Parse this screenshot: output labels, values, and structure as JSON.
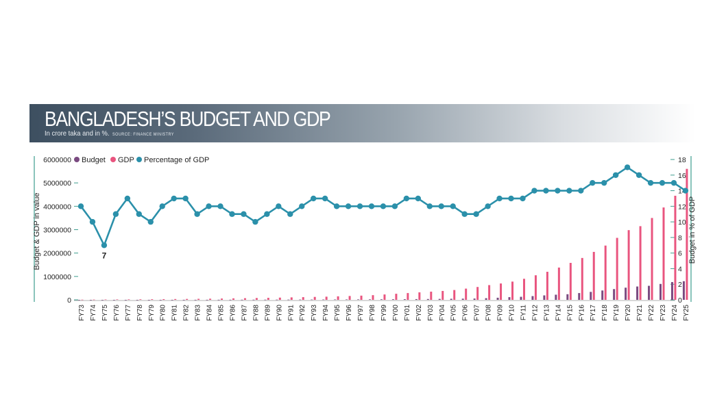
{
  "header": {
    "title": "BANGLADESH’S BUDGET AND GDP",
    "subtitle": "In crore taka and in %.",
    "source": "SOURCE: FINANCE MINISTRY"
  },
  "colors": {
    "budget": "#7a4a80",
    "gdp": "#e9557f",
    "percentage": "#2b90aa",
    "axis": "#3d9d8e",
    "text": "#222222"
  },
  "chart_data": {
    "type": "bar",
    "categories": [
      "FY73",
      "FY74",
      "FY75",
      "FY76",
      "FY77",
      "FY78",
      "FY79",
      "FY80",
      "FY81",
      "FY82",
      "FY83",
      "FY84",
      "FY85",
      "FY86",
      "FY87",
      "FY88",
      "FY89",
      "FY90",
      "FY91",
      "FY92",
      "FY93",
      "FY94",
      "FY95",
      "FY96",
      "FY97",
      "FY98",
      "FY99",
      "FY00",
      "FY01",
      "FY02",
      "FY03",
      "FY04",
      "FY05",
      "FY06",
      "FY07",
      "FY08",
      "FY09",
      "FY10",
      "FY11",
      "FY12",
      "FY13",
      "FY14",
      "FY15",
      "FY16",
      "FY17",
      "FY18",
      "FY19",
      "FY20",
      "FY21",
      "FY22",
      "FY23",
      "FY24",
      "FY25"
    ],
    "series": [
      {
        "name": "Budget",
        "type": "bar",
        "axis": "left",
        "values": [
          1000,
          1100,
          1200,
          1300,
          1400,
          1600,
          1800,
          2300,
          2800,
          3200,
          3800,
          4200,
          5000,
          5800,
          6500,
          7500,
          8500,
          9500,
          10500,
          12000,
          13000,
          14000,
          15500,
          17000,
          19000,
          21000,
          23000,
          25000,
          28000,
          31000,
          35000,
          40000,
          45000,
          50000,
          55000,
          70000,
          90000,
          115000,
          130000,
          160000,
          190000,
          220000,
          240000,
          290000,
          340000,
          400000,
          460000,
          520000,
          570000,
          600000,
          680000,
          760000,
          797000
        ]
      },
      {
        "name": "GDP",
        "type": "bar",
        "axis": "left",
        "values": [
          8000,
          11000,
          15000,
          18000,
          20000,
          23000,
          26000,
          30000,
          34000,
          38000,
          43000,
          48000,
          55000,
          62000,
          70000,
          78000,
          85000,
          95000,
          105000,
          115000,
          125000,
          135000,
          150000,
          165000,
          180000,
          200000,
          230000,
          260000,
          290000,
          320000,
          350000,
          380000,
          420000,
          480000,
          550000,
          630000,
          700000,
          780000,
          900000,
          1050000,
          1200000,
          1380000,
          1580000,
          1790000,
          2050000,
          2320000,
          2650000,
          2980000,
          3150000,
          3500000,
          3950000,
          4450000,
          5600000
        ]
      },
      {
        "name": "Percentage of GDP",
        "type": "line",
        "axis": "right",
        "values": [
          12,
          10,
          7,
          11,
          13,
          11,
          10,
          12,
          13,
          13,
          11,
          12,
          12,
          11,
          11,
          10,
          11,
          12,
          11,
          12,
          13,
          13,
          12,
          12,
          12,
          12,
          12,
          12,
          13,
          13,
          12,
          12,
          12,
          11,
          11,
          12,
          13,
          13,
          13,
          14,
          14,
          14,
          14,
          14,
          15,
          15,
          16,
          17,
          16,
          15,
          15,
          15,
          14
        ]
      }
    ],
    "annotations": [
      {
        "category": "FY75",
        "text": "7"
      }
    ],
    "y_left": {
      "label": "Budget & GDP in value",
      "ticks": [
        "0",
        "1000000",
        "2000000",
        "3000000",
        "4000000",
        "5000000",
        "6000000"
      ],
      "range": [
        0,
        6000000
      ]
    },
    "y_right": {
      "label": "Budget in % of GDP",
      "ticks": [
        "0",
        "2",
        "4",
        "6",
        "8",
        "10",
        "12",
        "14",
        "16",
        "18"
      ],
      "range": [
        0,
        18
      ]
    },
    "legend": {
      "position": "top-left",
      "entries": [
        "Budget",
        "GDP",
        "Percentage of GDP"
      ]
    }
  }
}
